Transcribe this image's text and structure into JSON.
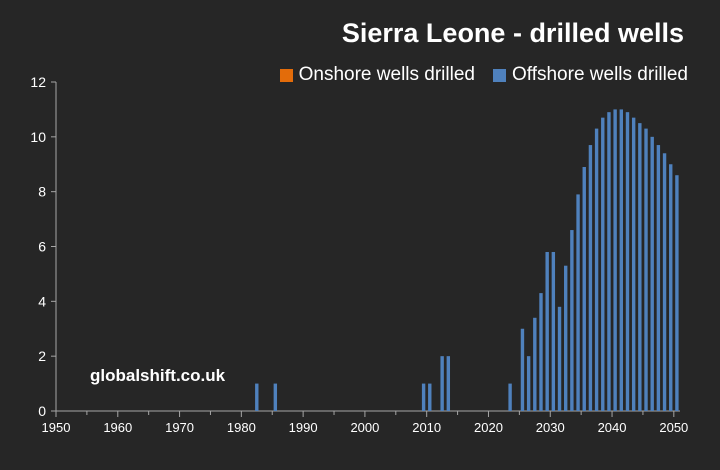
{
  "chart_data": {
    "type": "bar",
    "title": "Sierra Leone - drilled wells",
    "xlabel": "",
    "ylabel": "",
    "xlim": [
      1950,
      2051
    ],
    "ylim": [
      0,
      12
    ],
    "y_ticks": [
      0,
      2,
      4,
      6,
      8,
      10,
      12
    ],
    "x_ticks": [
      1950,
      1960,
      1970,
      1980,
      1990,
      2000,
      2010,
      2020,
      2030,
      2040,
      2050
    ],
    "grid": false,
    "legend_position": "top-right",
    "series": [
      {
        "name": "Onshore wells drilled",
        "color": "#E36C0A",
        "points": []
      },
      {
        "name": "Offshore wells drilled",
        "color": "#4F81BD",
        "points": [
          {
            "x": 1982,
            "y": 1
          },
          {
            "x": 1985,
            "y": 1
          },
          {
            "x": 2009,
            "y": 1
          },
          {
            "x": 2010,
            "y": 1
          },
          {
            "x": 2012,
            "y": 2
          },
          {
            "x": 2013,
            "y": 2
          },
          {
            "x": 2023,
            "y": 1
          },
          {
            "x": 2025,
            "y": 3
          },
          {
            "x": 2026,
            "y": 2
          },
          {
            "x": 2027,
            "y": 3.4
          },
          {
            "x": 2028,
            "y": 4.3
          },
          {
            "x": 2029,
            "y": 5.8
          },
          {
            "x": 2030,
            "y": 5.8
          },
          {
            "x": 2031,
            "y": 3.8
          },
          {
            "x": 2032,
            "y": 5.3
          },
          {
            "x": 2033,
            "y": 6.6
          },
          {
            "x": 2034,
            "y": 7.9
          },
          {
            "x": 2035,
            "y": 8.9
          },
          {
            "x": 2036,
            "y": 9.7
          },
          {
            "x": 2037,
            "y": 10.3
          },
          {
            "x": 2038,
            "y": 10.7
          },
          {
            "x": 2039,
            "y": 10.9
          },
          {
            "x": 2040,
            "y": 11.0
          },
          {
            "x": 2041,
            "y": 11.0
          },
          {
            "x": 2042,
            "y": 10.9
          },
          {
            "x": 2043,
            "y": 10.7
          },
          {
            "x": 2044,
            "y": 10.5
          },
          {
            "x": 2045,
            "y": 10.3
          },
          {
            "x": 2046,
            "y": 10.0
          },
          {
            "x": 2047,
            "y": 9.7
          },
          {
            "x": 2048,
            "y": 9.4
          },
          {
            "x": 2049,
            "y": 9.0
          },
          {
            "x": 2050,
            "y": 8.6
          }
        ]
      }
    ],
    "watermark": "globalshift.co.uk"
  }
}
